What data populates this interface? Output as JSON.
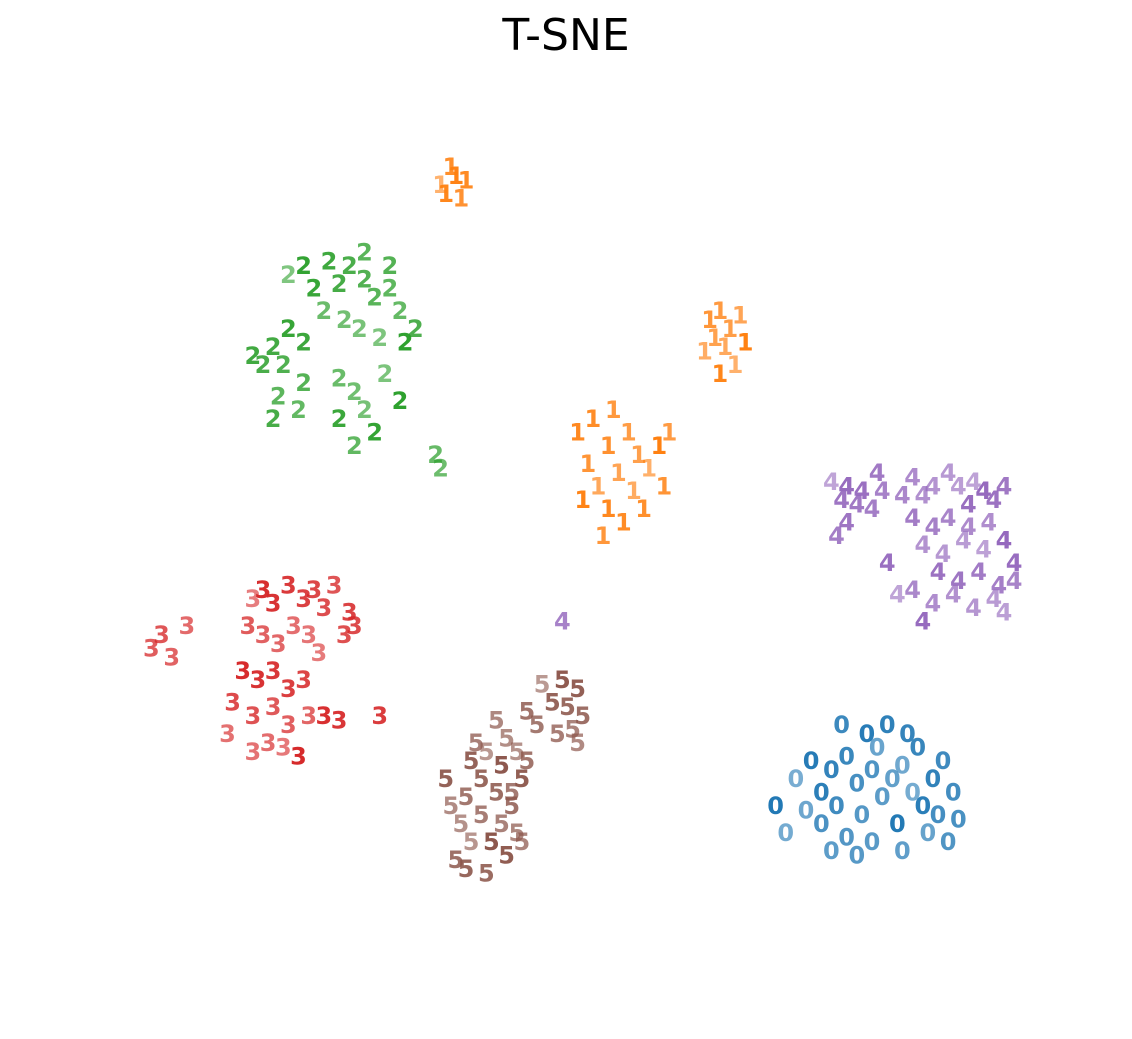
{
  "chart_data": {
    "type": "scatter",
    "title": "T-SNE",
    "xlabel": "",
    "ylabel": "",
    "grid": false,
    "axes_visible": false,
    "xlim": [
      -100,
      100
    ],
    "ylim": [
      -100,
      100
    ],
    "colors": {
      "0": "#1f77b4",
      "1": "#ff7f0e",
      "2": "#2ca02c",
      "3": "#d62728",
      "4": "#9467bd",
      "5": "#8c564b"
    },
    "series": [
      {
        "label": "0",
        "points": [
          [
            45,
            -52
          ],
          [
            48,
            -48
          ],
          [
            50,
            -55
          ],
          [
            52,
            -50
          ],
          [
            55,
            -47
          ],
          [
            53,
            -58
          ],
          [
            57,
            -53
          ],
          [
            60,
            -50
          ],
          [
            58,
            -60
          ],
          [
            62,
            -56
          ],
          [
            64,
            -52
          ],
          [
            61,
            -45
          ],
          [
            66,
            -49
          ],
          [
            68,
            -55
          ],
          [
            65,
            -62
          ],
          [
            70,
            -58
          ],
          [
            72,
            -52
          ],
          [
            69,
            -45
          ],
          [
            74,
            -48
          ],
          [
            73,
            -60
          ],
          [
            50,
            -62
          ],
          [
            55,
            -65
          ],
          [
            60,
            -66
          ],
          [
            66,
            -68
          ],
          [
            71,
            -64
          ],
          [
            47,
            -59
          ],
          [
            43,
            -64
          ],
          [
            41,
            -58
          ],
          [
            59,
            -42
          ],
          [
            63,
            -40
          ],
          [
            67,
            -42
          ],
          [
            54,
            -40
          ],
          [
            76,
            -55
          ],
          [
            77,
            -61
          ],
          [
            75,
            -66
          ],
          [
            57,
            -69
          ],
          [
            52,
            -68
          ]
        ]
      },
      {
        "label": "1",
        "points": [
          [
            -25,
            80
          ],
          [
            -22,
            82
          ],
          [
            -24,
            78
          ],
          [
            -20,
            81
          ],
          [
            -23,
            84
          ],
          [
            -21,
            77
          ],
          [
            28,
            50
          ],
          [
            30,
            52
          ],
          [
            32,
            48
          ],
          [
            29,
            46
          ],
          [
            34,
            51
          ],
          [
            31,
            44
          ],
          [
            27,
            43
          ],
          [
            33,
            40
          ],
          [
            35,
            45
          ],
          [
            30,
            38
          ],
          [
            2,
            25
          ],
          [
            5,
            28
          ],
          [
            8,
            22
          ],
          [
            4,
            18
          ],
          [
            9,
            30
          ],
          [
            12,
            25
          ],
          [
            14,
            20
          ],
          [
            10,
            16
          ],
          [
            6,
            13
          ],
          [
            13,
            12
          ],
          [
            16,
            17
          ],
          [
            18,
            22
          ],
          [
            3,
            10
          ],
          [
            8,
            8
          ],
          [
            11,
            5
          ],
          [
            15,
            8
          ],
          [
            19,
            13
          ],
          [
            7,
            2
          ],
          [
            20,
            25
          ]
        ]
      },
      {
        "label": "2",
        "points": [
          [
            -55,
            60
          ],
          [
            -52,
            62
          ],
          [
            -50,
            57
          ],
          [
            -47,
            63
          ],
          [
            -45,
            58
          ],
          [
            -43,
            62
          ],
          [
            -40,
            59
          ],
          [
            -38,
            55
          ],
          [
            -35,
            57
          ],
          [
            -33,
            52
          ],
          [
            -48,
            52
          ],
          [
            -44,
            50
          ],
          [
            -41,
            48
          ],
          [
            -37,
            46
          ],
          [
            -32,
            45
          ],
          [
            -55,
            48
          ],
          [
            -52,
            45
          ],
          [
            -58,
            44
          ],
          [
            -60,
            40
          ],
          [
            -56,
            40
          ],
          [
            -52,
            36
          ],
          [
            -57,
            33
          ],
          [
            -53,
            30
          ],
          [
            -45,
            37
          ],
          [
            -42,
            34
          ],
          [
            -40,
            30
          ],
          [
            -36,
            38
          ],
          [
            -33,
            32
          ],
          [
            -38,
            25
          ],
          [
            -45,
            28
          ],
          [
            -62,
            42
          ],
          [
            -58,
            28
          ],
          [
            -30,
            48
          ],
          [
            -35,
            62
          ],
          [
            -40,
            65
          ],
          [
            -42,
            22
          ],
          [
            -26,
            20
          ],
          [
            -25,
            17
          ]
        ]
      },
      {
        "label": "3",
        "points": [
          [
            -62,
            -12
          ],
          [
            -60,
            -10
          ],
          [
            -58,
            -13
          ],
          [
            -55,
            -9
          ],
          [
            -52,
            -12
          ],
          [
            -50,
            -10
          ],
          [
            -48,
            -14
          ],
          [
            -46,
            -9
          ],
          [
            -63,
            -18
          ],
          [
            -60,
            -20
          ],
          [
            -57,
            -22
          ],
          [
            -54,
            -18
          ],
          [
            -51,
            -20
          ],
          [
            -49,
            -24
          ],
          [
            -64,
            -28
          ],
          [
            -61,
            -30
          ],
          [
            -58,
            -28
          ],
          [
            -55,
            -32
          ],
          [
            -52,
            -30
          ],
          [
            -66,
            -35
          ],
          [
            -62,
            -38
          ],
          [
            -58,
            -36
          ],
          [
            -55,
            -40
          ],
          [
            -51,
            -38
          ],
          [
            -59,
            -44
          ],
          [
            -62,
            -46
          ],
          [
            -56,
            -45
          ],
          [
            -53,
            -47
          ],
          [
            -48,
            -38
          ],
          [
            -45,
            -39
          ],
          [
            -37,
            -38
          ],
          [
            -43,
            -15
          ],
          [
            -42,
            -18
          ],
          [
            -44,
            -20
          ],
          [
            -80,
            -20
          ],
          [
            -82,
            -23
          ],
          [
            -78,
            -25
          ],
          [
            -75,
            -18
          ],
          [
            -67,
            -42
          ]
        ]
      },
      {
        "label": "4",
        "points": [
          [
            52,
            14
          ],
          [
            55,
            13
          ],
          [
            58,
            12
          ],
          [
            54,
            10
          ],
          [
            57,
            9
          ],
          [
            60,
            8
          ],
          [
            62,
            12
          ],
          [
            66,
            11
          ],
          [
            68,
            15
          ],
          [
            70,
            11
          ],
          [
            72,
            13
          ],
          [
            75,
            16
          ],
          [
            77,
            13
          ],
          [
            80,
            14
          ],
          [
            82,
            12
          ],
          [
            79,
            9
          ],
          [
            84,
            10
          ],
          [
            86,
            13
          ],
          [
            68,
            6
          ],
          [
            72,
            4
          ],
          [
            75,
            6
          ],
          [
            79,
            4
          ],
          [
            83,
            5
          ],
          [
            70,
            0
          ],
          [
            74,
            -2
          ],
          [
            78,
            1
          ],
          [
            82,
            -1
          ],
          [
            86,
            1
          ],
          [
            88,
            -4
          ],
          [
            73,
            -6
          ],
          [
            77,
            -8
          ],
          [
            81,
            -6
          ],
          [
            85,
            -9
          ],
          [
            88,
            -8
          ],
          [
            68,
            -10
          ],
          [
            72,
            -13
          ],
          [
            76,
            -11
          ],
          [
            80,
            -14
          ],
          [
            84,
            -12
          ],
          [
            86,
            -15
          ],
          [
            65,
            -11
          ],
          [
            70,
            -17
          ],
          [
            63,
            -4
          ],
          [
            55,
            5
          ],
          [
            61,
            16
          ],
          [
            53,
            2
          ],
          [
            -1,
            -17
          ]
        ]
      },
      {
        "label": "5",
        "points": [
          [
            -5,
            -31
          ],
          [
            -1,
            -30
          ],
          [
            2,
            -32
          ],
          [
            -3,
            -35
          ],
          [
            0,
            -36
          ],
          [
            3,
            -38
          ],
          [
            -8,
            -37
          ],
          [
            -6,
            -40
          ],
          [
            -2,
            -42
          ],
          [
            1,
            -41
          ],
          [
            -14,
            -39
          ],
          [
            -12,
            -43
          ],
          [
            -10,
            -46
          ],
          [
            -16,
            -46
          ],
          [
            -13,
            -49
          ],
          [
            -9,
            -52
          ],
          [
            -19,
            -48
          ],
          [
            -17,
            -52
          ],
          [
            -14,
            -55
          ],
          [
            -11,
            -58
          ],
          [
            -20,
            -56
          ],
          [
            -17,
            -60
          ],
          [
            -13,
            -62
          ],
          [
            -10,
            -64
          ],
          [
            -23,
            -58
          ],
          [
            -21,
            -62
          ],
          [
            -19,
            -66
          ],
          [
            -15,
            -66
          ],
          [
            -12,
            -69
          ],
          [
            -24,
            -52
          ],
          [
            -20,
            -72
          ],
          [
            -16,
            -73
          ],
          [
            -22,
            -70
          ],
          [
            -8,
            -48
          ],
          [
            -11,
            -55
          ],
          [
            -18,
            -44
          ],
          [
            -9,
            -66
          ],
          [
            2,
            -44
          ]
        ]
      }
    ]
  }
}
